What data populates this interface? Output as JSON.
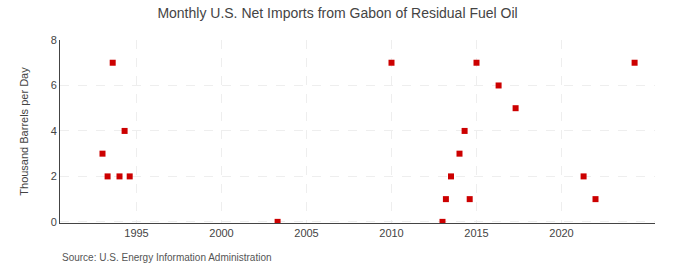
{
  "chart_data": {
    "type": "scatter",
    "title": "Monthly U.S. Net Imports from Gabon of Residual Fuel Oil",
    "ylabel": "Thousand Barrels per Day",
    "source": "Source: U.S. Energy Information Administration",
    "color": "#cc0000",
    "marker": "square",
    "x": [
      1993.0,
      1993.3,
      1993.6,
      1994.0,
      1994.3,
      1994.6,
      2003.3,
      2010.0,
      2013.0,
      2013.2,
      2013.5,
      2014.0,
      2014.3,
      2014.6,
      2015.0,
      2016.3,
      2017.3,
      2021.3,
      2022.0,
      2024.3
    ],
    "values": [
      3,
      2,
      7,
      2,
      4,
      2,
      0,
      7,
      0,
      1,
      2,
      3,
      4,
      1,
      7,
      6,
      5,
      2,
      1,
      7
    ],
    "xlim": [
      1990.5,
      2025.5
    ],
    "ylim": [
      -0.05,
      8
    ],
    "xticks": [
      1995,
      2000,
      2005,
      2010,
      2015,
      2020
    ],
    "yticks": [
      0,
      2,
      4,
      6,
      8
    ],
    "grid": true
  }
}
